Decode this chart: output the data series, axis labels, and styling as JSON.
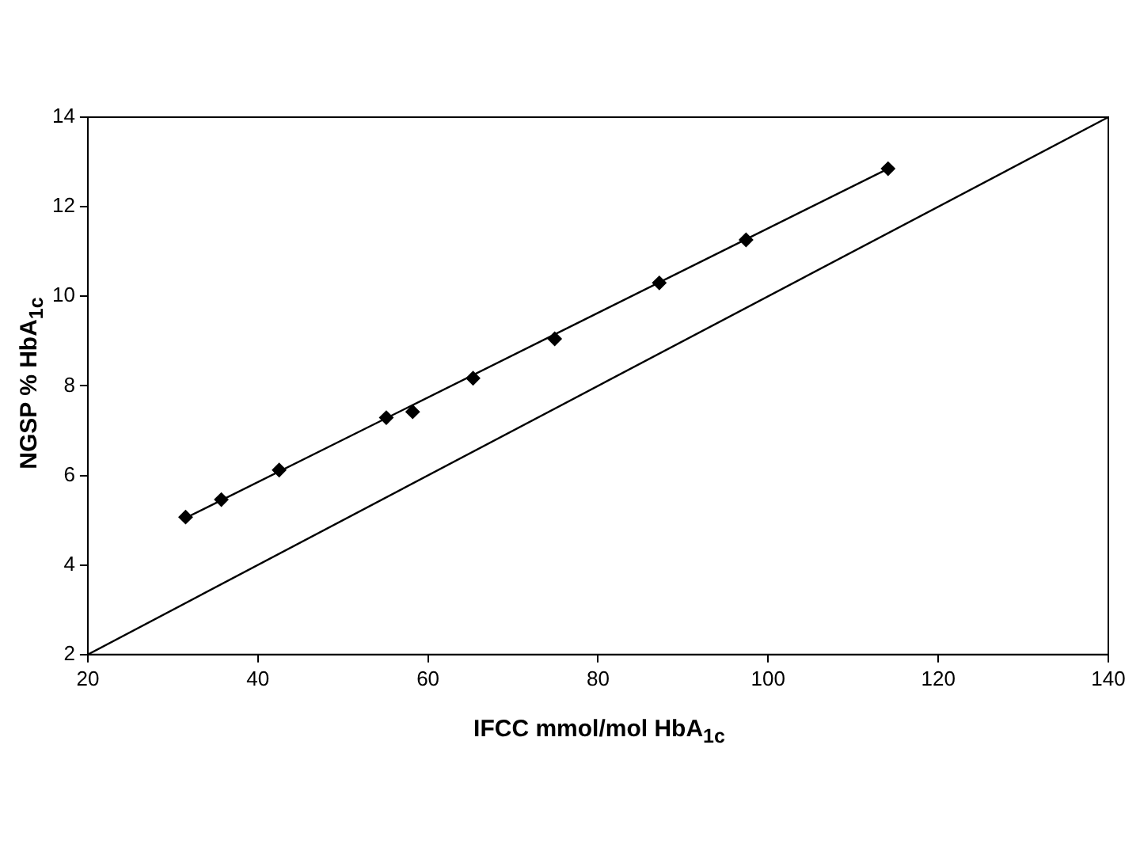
{
  "chart_data": {
    "type": "scatter",
    "xlabel": "IFCC mmol/mol HbA$_{1c}$",
    "ylabel": "NGSP % HbA$_{1c}$",
    "xlim": [
      20,
      140
    ],
    "xticks": [
      20,
      40,
      60,
      80,
      100,
      120,
      140
    ],
    "ylim": [
      2,
      14
    ],
    "yticks": [
      2,
      4,
      6,
      8,
      10,
      12,
      14
    ],
    "grid": false,
    "legend": false,
    "marker": "diamond",
    "series": [
      {
        "color": "#000000",
        "x": [
          31.5,
          35.7,
          42.5,
          55.1,
          58.2,
          65.3,
          74.9,
          87.2,
          97.4,
          114.1
        ],
        "values": [
          5.07,
          5.46,
          6.12,
          7.29,
          7.42,
          8.17,
          9.05,
          10.3,
          11.26,
          12.85
        ]
      },
      {
        "type": "line",
        "color": "#000000",
        "marker": "none",
        "x": [
          31.5,
          114.1
        ],
        "values": [
          5.05,
          12.85
        ]
      },
      {
        "type": "line",
        "color": "#000000",
        "marker": "none",
        "x": [
          20,
          140
        ],
        "values": [
          2,
          14
        ]
      }
    ]
  }
}
